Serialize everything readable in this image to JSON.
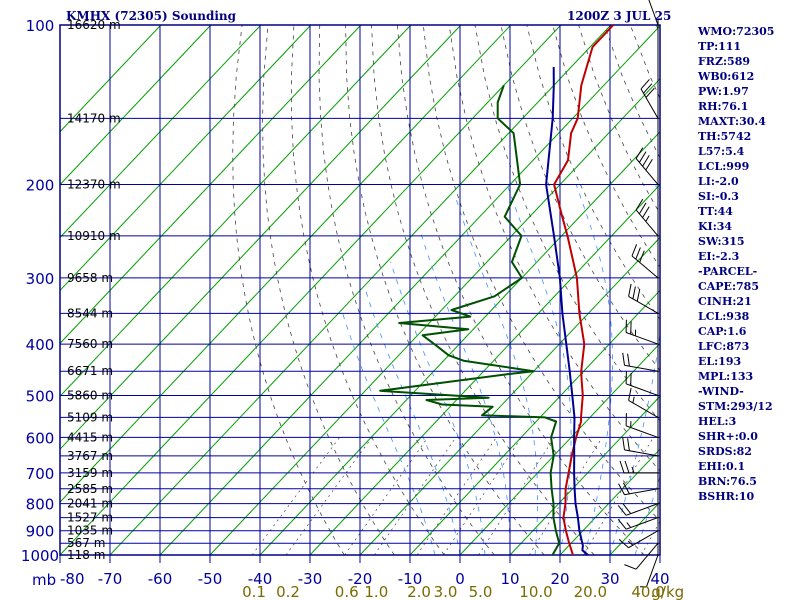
{
  "chart_data": {
    "type": "line",
    "title": "KMHX (72305) Sounding",
    "time_label": "1200Z  3 JUL 25",
    "pressure_unit": "mb",
    "mixing_ratio_unit": "g/kg",
    "xlim": [
      -80,
      40
    ],
    "pressure_range": [
      1000,
      100
    ],
    "pressure_ticks": [
      100,
      200,
      300,
      400,
      500,
      600,
      700,
      800,
      900,
      1000
    ],
    "temperature_ticks": [
      -80,
      -70,
      -60,
      -50,
      -40,
      -30,
      -20,
      -10,
      0,
      10,
      20,
      30,
      40
    ],
    "mixing_ratio_ticks": [
      "0.1",
      "0.2",
      "0.6",
      "1.0",
      "2.0",
      "3.0",
      "5.0",
      "10.0",
      "20.0",
      "40.0"
    ],
    "height_labels": [
      {
        "p": 100,
        "label": "16620 m"
      },
      {
        "p": 150,
        "label": "14170 m"
      },
      {
        "p": 200,
        "label": "12370 m"
      },
      {
        "p": 250,
        "label": "10910 m"
      },
      {
        "p": 300,
        "label": "9658 m"
      },
      {
        "p": 350,
        "label": "8544 m"
      },
      {
        "p": 400,
        "label": "7560 m"
      },
      {
        "p": 450,
        "label": "6671 m"
      },
      {
        "p": 500,
        "label": "5860 m"
      },
      {
        "p": 550,
        "label": "5109 m"
      },
      {
        "p": 600,
        "label": "4415 m"
      },
      {
        "p": 650,
        "label": "3767 m"
      },
      {
        "p": 700,
        "label": "3159 m"
      },
      {
        "p": 750,
        "label": "2585 m"
      },
      {
        "p": 800,
        "label": "2041 m"
      },
      {
        "p": 850,
        "label": "1527 m"
      },
      {
        "p": 900,
        "label": "1035 m"
      },
      {
        "p": 950,
        "label": "567 m"
      },
      {
        "p": 1000,
        "label": "118 m"
      }
    ],
    "series": [
      {
        "name": "Temperature",
        "color": "#c00000",
        "points": [
          [
            1008,
            22.8
          ],
          [
            1000,
            22.6
          ],
          [
            950,
            19.6
          ],
          [
            900,
            16.6
          ],
          [
            850,
            13.6
          ],
          [
            800,
            11.4
          ],
          [
            750,
            8.6
          ],
          [
            700,
            6.2
          ],
          [
            650,
            3.6
          ],
          [
            600,
            1.0
          ],
          [
            560,
            -1.0
          ],
          [
            550,
            -1.8
          ],
          [
            500,
            -5.6
          ],
          [
            470,
            -8.5
          ],
          [
            450,
            -10.5
          ],
          [
            400,
            -15.0
          ],
          [
            350,
            -21.8
          ],
          [
            300,
            -29.0
          ],
          [
            250,
            -38.8
          ],
          [
            230,
            -43.5
          ],
          [
            200,
            -51.2
          ],
          [
            180,
            -53.0
          ],
          [
            160,
            -57.5
          ],
          [
            150,
            -59.0
          ],
          [
            130,
            -64.5
          ],
          [
            110,
            -69.5
          ],
          [
            100,
            -69.5
          ]
        ]
      },
      {
        "name": "Dewpoint",
        "color": "#005000",
        "points": [
          [
            1008,
            18.6
          ],
          [
            1000,
            18.5
          ],
          [
            950,
            17.6
          ],
          [
            900,
            14.6
          ],
          [
            850,
            11.6
          ],
          [
            800,
            9.0
          ],
          [
            750,
            5.8
          ],
          [
            700,
            2.6
          ],
          [
            650,
            0.0
          ],
          [
            600,
            -4.0
          ],
          [
            560,
            -6.0
          ],
          [
            550,
            -9.0
          ],
          [
            545,
            -22.0
          ],
          [
            525,
            -21.5
          ],
          [
            520,
            -32.0
          ],
          [
            510,
            -36.0
          ],
          [
            505,
            -24.0
          ],
          [
            490,
            -47.0
          ],
          [
            455,
            -24.0
          ],
          [
            450,
            -20.0
          ],
          [
            430,
            -36.0
          ],
          [
            420,
            -40.0
          ],
          [
            400,
            -45.0
          ],
          [
            385,
            -49.0
          ],
          [
            375,
            -41.0
          ],
          [
            365,
            -56.0
          ],
          [
            355,
            -43.0
          ],
          [
            345,
            -48.0
          ],
          [
            325,
            -42.0
          ],
          [
            300,
            -40.0
          ],
          [
            280,
            -45.0
          ],
          [
            250,
            -48.0
          ],
          [
            230,
            -55.0
          ],
          [
            200,
            -58.0
          ],
          [
            170,
            -66.0
          ],
          [
            160,
            -69.0
          ],
          [
            150,
            -75.0
          ],
          [
            140,
            -78.0
          ],
          [
            130,
            -80.0
          ]
        ]
      },
      {
        "name": "Parcel",
        "color": "#000090",
        "points": [
          [
            1008,
            26.2
          ],
          [
            1000,
            25.6
          ],
          [
            980,
            23.6
          ],
          [
            960,
            22.8
          ],
          [
            900,
            19.3
          ],
          [
            850,
            16.5
          ],
          [
            800,
            13.4
          ],
          [
            750,
            10.4
          ],
          [
            700,
            7.3
          ],
          [
            650,
            4.1
          ],
          [
            600,
            0.6
          ],
          [
            550,
            -3.1
          ],
          [
            500,
            -7.7
          ],
          [
            450,
            -12.8
          ],
          [
            400,
            -18.6
          ],
          [
            350,
            -25.2
          ],
          [
            300,
            -32.4
          ],
          [
            250,
            -41.5
          ],
          [
            200,
            -52.8
          ],
          [
            150,
            -64.0
          ],
          [
            130,
            -70.0
          ],
          [
            120,
            -73.5
          ]
        ]
      }
    ],
    "wind_barbs": [
      {
        "p": 1000,
        "dir": 200,
        "spd": 5
      },
      {
        "p": 950,
        "dir": 220,
        "spd": 10
      },
      {
        "p": 900,
        "dir": 240,
        "spd": 15
      },
      {
        "p": 850,
        "dir": 250,
        "spd": 15
      },
      {
        "p": 800,
        "dir": 250,
        "spd": 20
      },
      {
        "p": 750,
        "dir": 260,
        "spd": 20
      },
      {
        "p": 700,
        "dir": 270,
        "spd": 25
      },
      {
        "p": 650,
        "dir": 280,
        "spd": 20
      },
      {
        "p": 600,
        "dir": 290,
        "spd": 15
      },
      {
        "p": 550,
        "dir": 300,
        "spd": 15
      },
      {
        "p": 500,
        "dir": 290,
        "spd": 20
      },
      {
        "p": 450,
        "dir": 280,
        "spd": 20
      },
      {
        "p": 400,
        "dir": 290,
        "spd": 25
      },
      {
        "p": 350,
        "dir": 300,
        "spd": 30
      },
      {
        "p": 300,
        "dir": 310,
        "spd": 30
      },
      {
        "p": 250,
        "dir": 320,
        "spd": 35
      },
      {
        "p": 200,
        "dir": 320,
        "spd": 40
      },
      {
        "p": 150,
        "dir": 330,
        "spd": 30
      },
      {
        "p": 100,
        "dir": 340,
        "spd": 20
      }
    ]
  },
  "indices": [
    "WMO:72305",
    "TP:111",
    "FRZ:589",
    "WB0:612",
    "PW:1.97",
    "RH:76.1",
    "MAXT:30.4",
    "TH:5742",
    "L57:5.4",
    "LCL:999",
    "LI:-2.0",
    "SI:-0.3",
    "TT:44",
    "KI:34",
    "SW:315",
    "EI:-2.3",
    "-PARCEL-",
    "CAPE:785",
    "CINH:21",
    "LCL:938",
    "CAP:1.6",
    "LFC:873",
    "EL:193",
    "MPL:133",
    "-WIND-",
    "STM:293/12",
    "HEL:3",
    "SHR+:0.0",
    "SRDS:82",
    "EHI:0.1",
    "BRN:76.5",
    "BSHR:10"
  ],
  "colors": {
    "frame": "#000080",
    "grid": "#0000a0",
    "isotherm": "#00a000",
    "dry_adiabat": "#444444",
    "moist_adiabat": "#4090ff",
    "mixing_label": "#7a6a00"
  }
}
